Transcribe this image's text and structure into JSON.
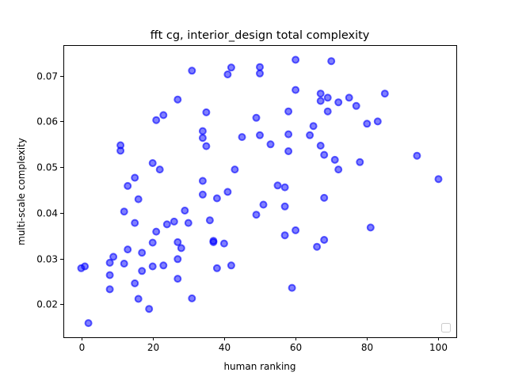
{
  "chart_data": {
    "type": "scatter",
    "title": "fft cg, interior_design total complexity",
    "xlabel": "human ranking",
    "ylabel": "multi-scale complexity",
    "xlim": [
      -5,
      105
    ],
    "ylim": [
      0.0128,
      0.0767
    ],
    "xticks": [
      0,
      20,
      40,
      60,
      80,
      100
    ],
    "xtick_labels": [
      "0",
      "20",
      "40",
      "60",
      "80",
      "100"
    ],
    "yticks": [
      0.02,
      0.03,
      0.04,
      0.05,
      0.06,
      0.07
    ],
    "ytick_labels": [
      "0.02",
      "0.03",
      "0.04",
      "0.05",
      "0.06",
      "0.07"
    ],
    "legend": "lower-right (empty)",
    "marker_color": "#0000ff",
    "points": [
      [
        0,
        0.0279
      ],
      [
        1,
        0.0283
      ],
      [
        2,
        0.0159
      ],
      [
        8,
        0.0291
      ],
      [
        8,
        0.0264
      ],
      [
        8,
        0.0233
      ],
      [
        9,
        0.0304
      ],
      [
        11,
        0.0548
      ],
      [
        11,
        0.0536
      ],
      [
        12,
        0.0403
      ],
      [
        12,
        0.0289
      ],
      [
        13,
        0.0459
      ],
      [
        13,
        0.032
      ],
      [
        15,
        0.0477
      ],
      [
        15,
        0.0378
      ],
      [
        15,
        0.0246
      ],
      [
        16,
        0.043
      ],
      [
        16,
        0.0212
      ],
      [
        17,
        0.0313
      ],
      [
        17,
        0.0273
      ],
      [
        19,
        0.019
      ],
      [
        20,
        0.0509
      ],
      [
        20,
        0.0335
      ],
      [
        20,
        0.0283
      ],
      [
        21,
        0.0603
      ],
      [
        21,
        0.0359
      ],
      [
        22,
        0.0495
      ],
      [
        23,
        0.0614
      ],
      [
        23,
        0.0285
      ],
      [
        24,
        0.0375
      ],
      [
        26,
        0.0381
      ],
      [
        27,
        0.0648
      ],
      [
        27,
        0.0336
      ],
      [
        27,
        0.0299
      ],
      [
        27,
        0.0256
      ],
      [
        28,
        0.0323
      ],
      [
        29,
        0.0405
      ],
      [
        30,
        0.0378
      ],
      [
        31,
        0.0711
      ],
      [
        31,
        0.0213
      ],
      [
        34,
        0.0579
      ],
      [
        34,
        0.0564
      ],
      [
        34,
        0.047
      ],
      [
        34,
        0.044
      ],
      [
        35,
        0.062
      ],
      [
        35,
        0.0546
      ],
      [
        36,
        0.0384
      ],
      [
        37,
        0.0339
      ],
      [
        37,
        0.0336
      ],
      [
        38,
        0.0432
      ],
      [
        38,
        0.0279
      ],
      [
        40,
        0.0333
      ],
      [
        41,
        0.0703
      ],
      [
        41,
        0.0446
      ],
      [
        42,
        0.0718
      ],
      [
        42,
        0.0285
      ],
      [
        43,
        0.0495
      ],
      [
        45,
        0.0566
      ],
      [
        49,
        0.0608
      ],
      [
        49,
        0.0396
      ],
      [
        50,
        0.0719
      ],
      [
        50,
        0.0705
      ],
      [
        50,
        0.057
      ],
      [
        51,
        0.0418
      ],
      [
        53,
        0.055
      ],
      [
        55,
        0.046
      ],
      [
        57,
        0.0456
      ],
      [
        57,
        0.0414
      ],
      [
        57,
        0.0351
      ],
      [
        58,
        0.0622
      ],
      [
        58,
        0.0572
      ],
      [
        58,
        0.0535
      ],
      [
        59,
        0.0236
      ],
      [
        60,
        0.0735
      ],
      [
        60,
        0.0669
      ],
      [
        60,
        0.0362
      ],
      [
        64,
        0.057
      ],
      [
        65,
        0.059
      ],
      [
        66,
        0.0326
      ],
      [
        67,
        0.0661
      ],
      [
        67,
        0.0645
      ],
      [
        67,
        0.0547
      ],
      [
        68,
        0.0527
      ],
      [
        68,
        0.0433
      ],
      [
        68,
        0.0341
      ],
      [
        69,
        0.0622
      ],
      [
        69,
        0.0652
      ],
      [
        70,
        0.0732
      ],
      [
        71,
        0.0516
      ],
      [
        72,
        0.0642
      ],
      [
        72,
        0.0495
      ],
      [
        75,
        0.0652
      ],
      [
        77,
        0.0634
      ],
      [
        78,
        0.0511
      ],
      [
        80,
        0.0595
      ],
      [
        81,
        0.0368
      ],
      [
        83,
        0.06
      ],
      [
        85,
        0.0661
      ],
      [
        94,
        0.0525
      ],
      [
        100,
        0.0474
      ]
    ]
  }
}
